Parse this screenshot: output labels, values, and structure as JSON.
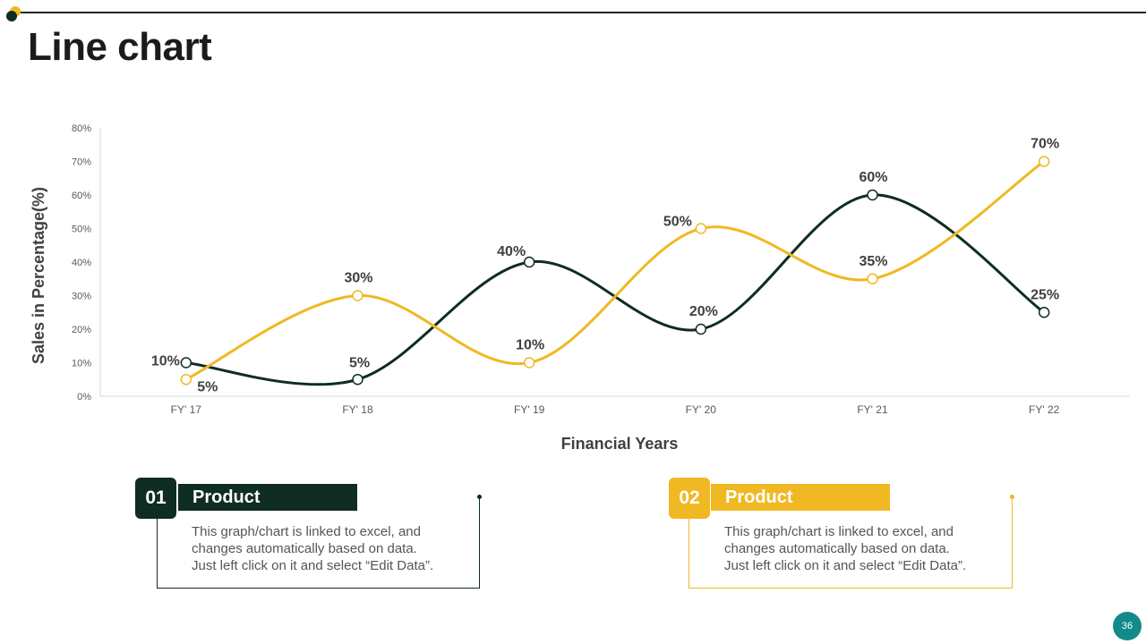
{
  "title": "Line chart",
  "colors": {
    "dark_green": "#0f2d20",
    "yellow": "#f0b823",
    "teal": "#138a8a"
  },
  "chart_data": {
    "type": "line",
    "x": [
      "FY' 17",
      "FY' 18",
      "FY' 19",
      "FY' 20",
      "FY' 21",
      "FY' 22"
    ],
    "series": [
      {
        "values": [
          10,
          5,
          40,
          20,
          60,
          25
        ],
        "labels": [
          "10%",
          "5%",
          "40%",
          "20%",
          "60%",
          "25%"
        ],
        "color": "#0f2d20"
      },
      {
        "values": [
          5,
          30,
          10,
          50,
          35,
          70
        ],
        "labels": [
          "5%",
          "30%",
          "10%",
          "50%",
          "35%",
          "70%"
        ],
        "color": "#f0b823"
      }
    ],
    "yticks": [
      "0%",
      "10%",
      "20%",
      "30%",
      "40%",
      "50%",
      "60%",
      "70%",
      "80%"
    ],
    "ylim": [
      0,
      80
    ],
    "xlabel": "Financial Years",
    "ylabel": "Sales in Percentage(%)",
    "smooth": true,
    "grid": false
  },
  "cards": [
    {
      "number": "01",
      "label": "Product",
      "text": "This graph/chart is linked to excel, and\nchanges automatically based on data.\nJust left click on it and select “Edit Data”."
    },
    {
      "number": "02",
      "label": "Product",
      "text": "This graph/chart is linked to excel, and\nchanges automatically based on data.\nJust left click on it and select “Edit Data”."
    }
  ],
  "page_number": "36"
}
